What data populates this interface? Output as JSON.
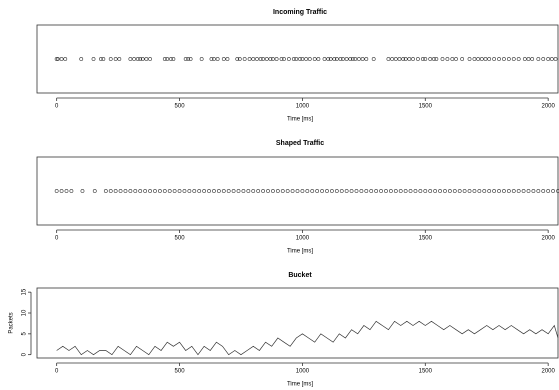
{
  "chart_data": [
    {
      "type": "strip",
      "title": "Incoming Traffic",
      "xlabel": "Time [ms]",
      "color": "#333333",
      "xlim": [
        -80,
        2040
      ],
      "xticks": [
        0,
        500,
        1000,
        1500,
        2000
      ],
      "x": [
        0,
        5,
        20,
        35,
        100,
        150,
        180,
        190,
        220,
        240,
        255,
        300,
        315,
        330,
        340,
        350,
        365,
        380,
        440,
        450,
        465,
        475,
        525,
        535,
        545,
        590,
        630,
        640,
        655,
        680,
        695,
        735,
        745,
        765,
        785,
        800,
        815,
        830,
        840,
        855,
        870,
        880,
        895,
        915,
        925,
        945,
        965,
        975,
        990,
        1000,
        1015,
        1030,
        1050,
        1065,
        1090,
        1105,
        1115,
        1130,
        1140,
        1155,
        1165,
        1180,
        1195,
        1205,
        1215,
        1230,
        1245,
        1260,
        1290,
        1350,
        1365,
        1380,
        1395,
        1410,
        1420,
        1435,
        1450,
        1470,
        1490,
        1500,
        1520,
        1535,
        1545,
        1570,
        1590,
        1610,
        1625,
        1650,
        1680,
        1700,
        1715,
        1730,
        1745,
        1760,
        1780,
        1800,
        1820,
        1840,
        1860,
        1880,
        1905,
        1920,
        1935,
        1960,
        1980,
        2000,
        2015,
        2030
      ]
    },
    {
      "type": "strip",
      "title": "Shaped Traffic",
      "xlabel": "Time [ms]",
      "color": "#333333",
      "xlim": [
        -80,
        2040
      ],
      "xticks": [
        0,
        500,
        1000,
        1500,
        2000
      ],
      "x": [
        0,
        20,
        40,
        60,
        105,
        155,
        200,
        220,
        240,
        260,
        280,
        300,
        320,
        340,
        360,
        380,
        400,
        420,
        440,
        460,
        480,
        500,
        520,
        540,
        560,
        580,
        600,
        620,
        640,
        660,
        680,
        700,
        720,
        740,
        760,
        780,
        800,
        820,
        840,
        860,
        880,
        900,
        920,
        940,
        960,
        980,
        1000,
        1020,
        1040,
        1060,
        1080,
        1100,
        1120,
        1140,
        1160,
        1180,
        1200,
        1220,
        1240,
        1260,
        1280,
        1300,
        1320,
        1340,
        1360,
        1380,
        1400,
        1420,
        1440,
        1460,
        1480,
        1500,
        1520,
        1540,
        1560,
        1580,
        1600,
        1620,
        1640,
        1660,
        1680,
        1700,
        1720,
        1740,
        1760,
        1780,
        1800,
        1820,
        1840,
        1860,
        1880,
        1900,
        1920,
        1940,
        1960,
        1980,
        2000,
        2020,
        2040
      ]
    },
    {
      "type": "line",
      "title": "Bucket",
      "xlabel": "Time [ms]",
      "ylabel": "Packets",
      "color": "#333333",
      "xlim": [
        -80,
        2040
      ],
      "xticks": [
        0,
        500,
        1000,
        1500,
        2000
      ],
      "ylim": [
        -0.8,
        16
      ],
      "yticks": [
        0,
        5,
        10,
        15
      ],
      "x": [
        0,
        25,
        50,
        75,
        100,
        125,
        150,
        175,
        200,
        225,
        250,
        275,
        300,
        325,
        350,
        375,
        400,
        425,
        450,
        475,
        500,
        525,
        550,
        575,
        600,
        625,
        650,
        675,
        700,
        725,
        750,
        775,
        800,
        825,
        850,
        875,
        900,
        925,
        950,
        975,
        1000,
        1025,
        1050,
        1075,
        1100,
        1125,
        1150,
        1175,
        1200,
        1225,
        1250,
        1275,
        1300,
        1325,
        1350,
        1375,
        1400,
        1425,
        1450,
        1475,
        1500,
        1525,
        1550,
        1575,
        1600,
        1625,
        1650,
        1675,
        1700,
        1725,
        1750,
        1775,
        1800,
        1825,
        1850,
        1875,
        1900,
        1925,
        1950,
        1975,
        2000,
        2025,
        2040
      ],
      "values": [
        1,
        2,
        1,
        2,
        0,
        1,
        0,
        1,
        1,
        0,
        2,
        1,
        0,
        2,
        1,
        0,
        2,
        1,
        3,
        2,
        3,
        1,
        2,
        0,
        2,
        1,
        3,
        2,
        0,
        1,
        0,
        1,
        2,
        1,
        3,
        2,
        4,
        3,
        2,
        4,
        5,
        4,
        3,
        5,
        4,
        3,
        5,
        4,
        6,
        5,
        7,
        6,
        8,
        7,
        6,
        8,
        7,
        8,
        7,
        8,
        7,
        8,
        7,
        6,
        7,
        6,
        5,
        6,
        5,
        6,
        7,
        6,
        7,
        6,
        7,
        6,
        5,
        6,
        5,
        6,
        5,
        7,
        4
      ]
    }
  ]
}
